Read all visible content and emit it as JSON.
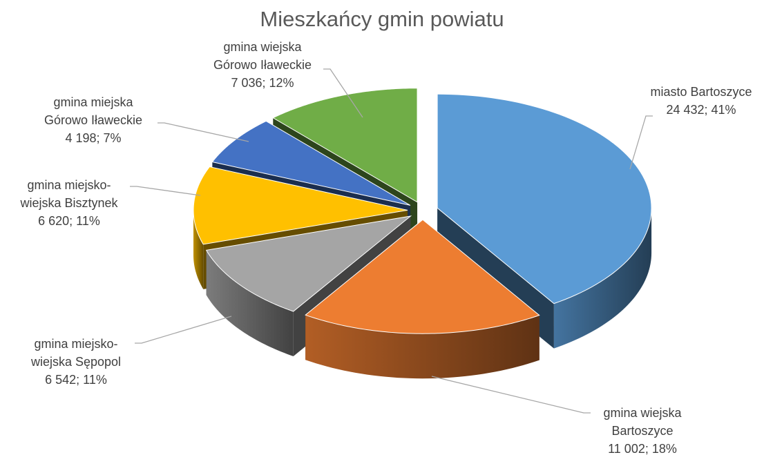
{
  "chart_data": {
    "type": "pie",
    "title": "Mieszkańcy gmin powiatu",
    "categories": [
      "miasto Bartoszyce",
      "gmina wiejska Bartoszyce",
      "gmina miejsko-wiejska Sępopol",
      "gmina miejsko-wiejska Bisztynek",
      "gmina miejska Górowo Iławeckie",
      "gmina wiejska Górowo Iławeckie"
    ],
    "values": [
      24432,
      11002,
      6542,
      6620,
      4198,
      7036
    ],
    "value_labels": [
      "24 432; 41%",
      "11 002; 18%",
      "6 542; 11%",
      "6 620; 11%",
      "4 198; 7%",
      "7 036; 12%"
    ],
    "colors": [
      "#5b9bd5",
      "#ed7d31",
      "#a5a5a5",
      "#ffc000",
      "#4472c4",
      "#70ad47"
    ]
  }
}
